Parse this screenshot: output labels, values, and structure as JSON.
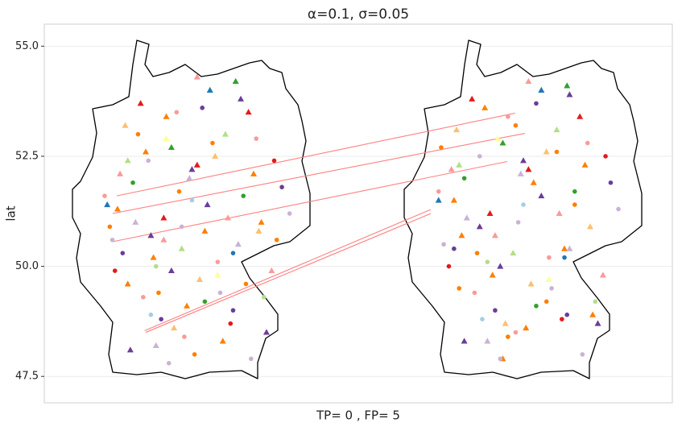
{
  "chart_data": {
    "type": "scatter",
    "title": "α=0.1, σ=0.05",
    "y_label": "lat",
    "x_label": "TP= 0 , FP= 5",
    "xlim": [
      4.65,
      29.1
    ],
    "ylim": [
      46.9,
      55.5
    ],
    "yticks": [
      {
        "value": 47.5,
        "label": "47.5"
      },
      {
        "value": 50,
        "label": "50.0"
      },
      52.5,
      {
        "value": 55,
        "label": "55.0"
      }
    ],
    "grid": true,
    "series": [
      {
        "color": "#ff7f00",
        "marker": "triangle",
        "x": [
          7.5,
          8.9,
          10.2,
          11.6,
          12.8,
          9.4,
          7.9,
          10.9,
          13.1,
          8.6,
          20.6,
          22.1,
          23.4,
          24.9,
          25.7,
          21.8,
          20.9,
          23.7,
          26.0,
          22.5
        ],
        "y": [
          51.3,
          50.2,
          49.1,
          48.3,
          52.1,
          53.4,
          49.6,
          50.8,
          51.0,
          52.6,
          51.5,
          49.8,
          48.6,
          50.4,
          52.3,
          53.6,
          50.7,
          51.9,
          48.9,
          47.9
        ]
      },
      {
        "color": "#ff7f00",
        "marker": "circle",
        "x": [
          8.3,
          9.9,
          11.2,
          12.5,
          7.2,
          10.5,
          13.7,
          9.1,
          20.1,
          21.5,
          23.0,
          24.2,
          25.3,
          22.7,
          20.8,
          24.6
        ],
        "y": [
          53.0,
          51.7,
          52.8,
          49.6,
          50.9,
          48.0,
          50.6,
          49.4,
          52.7,
          50.3,
          53.2,
          49.2,
          51.4,
          48.4,
          49.5,
          52.6
        ]
      },
      {
        "color": "#6a3d9a",
        "marker": "triangle",
        "x": [
          8.0,
          9.6,
          11.0,
          12.3,
          10.4,
          13.3,
          8.8,
          21.0,
          22.4,
          24.0,
          25.1,
          23.3,
          26.2,
          21.6
        ],
        "y": [
          48.1,
          49.9,
          51.4,
          53.8,
          52.2,
          48.5,
          50.7,
          48.3,
          50.0,
          51.6,
          53.9,
          52.4,
          48.7,
          50.9
        ]
      },
      {
        "color": "#6a3d9a",
        "marker": "circle",
        "x": [
          9.2,
          7.7,
          12.0,
          10.8,
          13.9,
          22.2,
          20.6,
          25.0,
          23.8,
          26.7
        ],
        "y": [
          48.8,
          50.3,
          49.0,
          53.6,
          51.8,
          49.0,
          50.4,
          48.9,
          53.7,
          51.9
        ]
      },
      {
        "color": "#fb9a99",
        "marker": "circle",
        "x": [
          7.0,
          8.5,
          9.8,
          11.4,
          12.9,
          10.1,
          20.0,
          21.4,
          22.7,
          24.3,
          25.8,
          23.0
        ],
        "y": [
          51.6,
          49.3,
          53.5,
          50.1,
          52.9,
          48.4,
          51.7,
          49.4,
          53.4,
          50.2,
          52.8,
          48.5
        ]
      },
      {
        "color": "#fb9a99",
        "marker": "triangle",
        "x": [
          7.6,
          9.3,
          11.8,
          13.5,
          10.6,
          20.5,
          22.2,
          24.7,
          26.4,
          23.5
        ],
        "y": [
          52.1,
          50.6,
          51.1,
          49.9,
          54.3,
          52.2,
          50.7,
          51.2,
          49.8,
          54.2
        ]
      },
      {
        "color": "#cab2d6",
        "marker": "circle",
        "x": [
          7.3,
          8.7,
          10.0,
          11.5,
          12.7,
          9.5,
          14.2,
          20.2,
          21.6,
          23.1,
          24.4,
          25.6,
          22.4,
          27.0
        ],
        "y": [
          50.6,
          52.4,
          50.9,
          49.4,
          47.9,
          47.8,
          51.2,
          50.5,
          52.5,
          51.0,
          49.5,
          48.0,
          47.9,
          51.3
        ]
      },
      {
        "color": "#cab2d6",
        "marker": "triangle",
        "x": [
          8.2,
          10.3,
          12.2,
          9.0,
          21.1,
          23.2,
          25.1,
          21.9
        ],
        "y": [
          51.0,
          52.0,
          50.5,
          48.2,
          51.1,
          52.1,
          50.4,
          48.3
        ]
      },
      {
        "color": "#fdbf6f",
        "marker": "triangle",
        "x": [
          7.8,
          9.7,
          11.3,
          13.0,
          10.7,
          20.7,
          22.6,
          24.2,
          25.9,
          23.6
        ],
        "y": [
          53.2,
          48.6,
          52.5,
          50.8,
          49.7,
          53.1,
          48.7,
          52.6,
          50.9,
          49.6
        ]
      },
      {
        "color": "#e31a1c",
        "marker": "triangle",
        "x": [
          8.4,
          10.6,
          12.6,
          9.3,
          21.3,
          23.5,
          25.5,
          22.0
        ],
        "y": [
          53.7,
          52.3,
          53.5,
          51.1,
          53.8,
          52.2,
          53.4,
          51.2
        ]
      },
      {
        "color": "#e31a1c",
        "marker": "circle",
        "x": [
          7.4,
          11.9,
          13.6,
          20.4,
          24.8,
          26.5
        ],
        "y": [
          49.9,
          48.7,
          52.4,
          50.0,
          48.8,
          52.5
        ]
      },
      {
        "color": "#33a02c",
        "marker": "circle",
        "x": [
          8.1,
          10.9,
          12.4,
          21.0,
          23.8,
          25.3
        ],
        "y": [
          51.9,
          49.2,
          51.6,
          52.0,
          49.1,
          51.7
        ]
      },
      {
        "color": "#33a02c",
        "marker": "triangle",
        "x": [
          9.6,
          12.1,
          22.5,
          25.0
        ],
        "y": [
          52.7,
          54.2,
          52.8,
          54.1
        ]
      },
      {
        "color": "#b2df8a",
        "marker": "triangle",
        "x": [
          7.9,
          10.0,
          11.7,
          20.8,
          22.9,
          24.6
        ],
        "y": [
          52.4,
          50.4,
          53.0,
          52.3,
          50.3,
          53.1
        ]
      },
      {
        "color": "#b2df8a",
        "marker": "circle",
        "x": [
          9.0,
          13.2,
          21.9,
          26.1
        ],
        "y": [
          50.0,
          49.3,
          50.1,
          49.2
        ]
      },
      {
        "color": "#1f78b4",
        "marker": "triangle",
        "x": [
          7.1,
          11.1,
          20.0,
          24.0
        ],
        "y": [
          51.4,
          54.0,
          51.5,
          54.0
        ]
      },
      {
        "color": "#1f78b4",
        "marker": "circle",
        "x": [
          12.0,
          24.9
        ],
        "y": [
          50.3,
          50.2
        ]
      },
      {
        "color": "#a6cee3",
        "marker": "circle",
        "x": [
          8.8,
          10.4,
          21.7,
          23.3
        ],
        "y": [
          48.9,
          51.5,
          48.8,
          51.4
        ]
      },
      {
        "color": "#ffff99",
        "marker": "triangle",
        "x": [
          9.4,
          11.4,
          22.3,
          24.3
        ],
        "y": [
          52.9,
          49.8,
          52.9,
          49.7
        ]
      }
    ],
    "segments": {
      "color": "#ff8080",
      "x0": [
        7.47,
        7.31,
        7.31,
        8.56,
        8.6
      ],
      "y0": [
        51.6,
        51.2,
        50.56,
        48.54,
        48.5
      ],
      "x1": [
        22.98,
        23.36,
        22.67,
        19.69,
        19.7
      ],
      "y1": [
        53.48,
        53.02,
        52.38,
        51.29,
        51.2
      ]
    }
  }
}
